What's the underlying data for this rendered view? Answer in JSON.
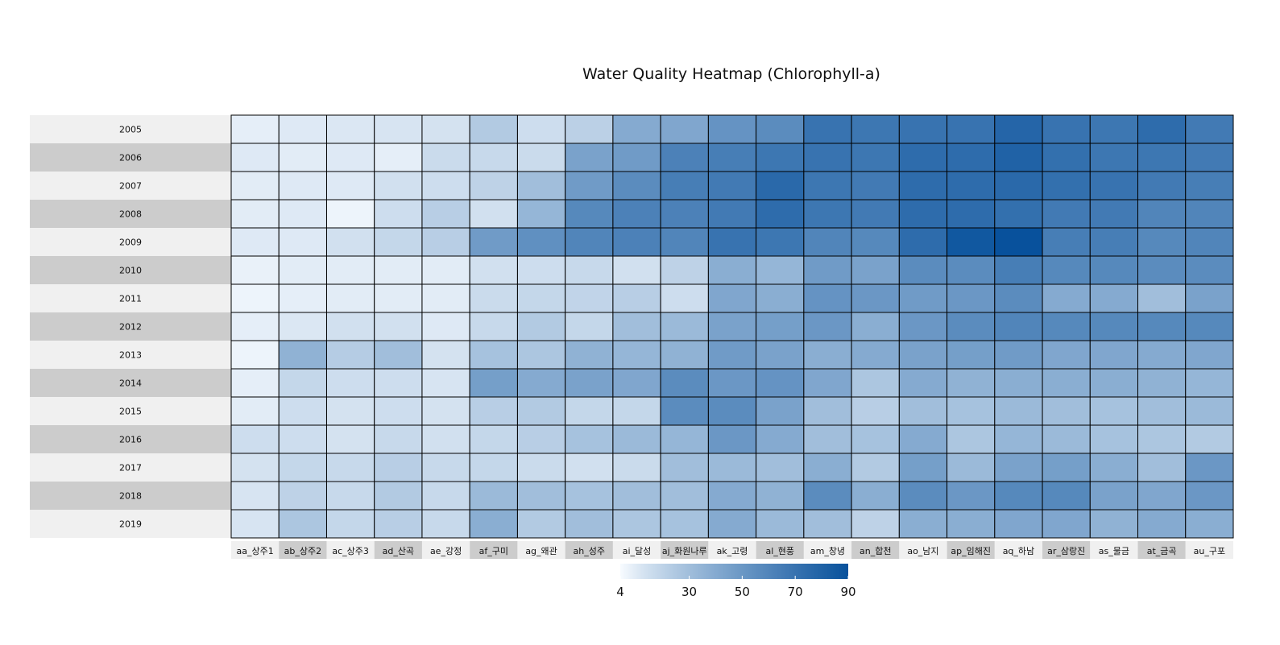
{
  "chart_data": {
    "type": "heatmap",
    "title": "Water Quality Heatmap (Chlorophyll-a)",
    "xlabel": "",
    "ylabel": "",
    "x_categories": [
      "aa_상주1",
      "ab_상주2",
      "ac_상주3",
      "ad_산곡",
      "ae_강정",
      "af_구미",
      "ag_왜관",
      "ah_성주",
      "ai_달성",
      "aj_화원나루",
      "ak_고령",
      "al_현풍",
      "am_창녕",
      "an_합천",
      "ao_남지",
      "ap_임해진",
      "aq_하남",
      "ar_삼랑진",
      "as_물금",
      "at_금곡",
      "au_구포"
    ],
    "y_categories": [
      "2005",
      "2006",
      "2007",
      "2008",
      "2009",
      "2010",
      "2011",
      "2012",
      "2013",
      "2014",
      "2015",
      "2016",
      "2017",
      "2018",
      "2019"
    ],
    "values": [
      [
        8,
        10,
        11,
        12,
        13,
        24,
        15,
        21,
        40,
        42,
        52,
        56,
        70,
        68,
        70,
        70,
        78,
        70,
        68,
        74,
        66
      ],
      [
        10,
        9,
        10,
        8,
        16,
        17,
        16,
        44,
        48,
        62,
        64,
        68,
        70,
        68,
        74,
        74,
        80,
        72,
        68,
        68,
        66
      ],
      [
        9,
        10,
        10,
        14,
        15,
        20,
        30,
        48,
        56,
        64,
        66,
        76,
        68,
        66,
        74,
        74,
        76,
        72,
        70,
        66,
        64
      ],
      [
        9,
        10,
        6,
        15,
        22,
        14,
        34,
        58,
        62,
        62,
        66,
        74,
        68,
        66,
        74,
        74,
        72,
        66,
        66,
        60,
        60
      ],
      [
        10,
        10,
        14,
        18,
        22,
        48,
        54,
        60,
        62,
        60,
        70,
        68,
        60,
        58,
        74,
        86,
        96,
        64,
        64,
        58,
        60
      ],
      [
        7,
        9,
        9,
        9,
        9,
        14,
        15,
        17,
        14,
        20,
        38,
        34,
        48,
        44,
        56,
        56,
        64,
        58,
        58,
        56,
        56
      ],
      [
        6,
        8,
        9,
        9,
        9,
        16,
        18,
        19,
        22,
        15,
        42,
        38,
        52,
        50,
        48,
        50,
        56,
        40,
        40,
        30,
        44
      ],
      [
        8,
        11,
        14,
        14,
        10,
        17,
        24,
        18,
        30,
        32,
        44,
        46,
        50,
        38,
        50,
        56,
        60,
        58,
        58,
        58,
        58
      ],
      [
        6,
        36,
        23,
        30,
        13,
        28,
        26,
        36,
        34,
        36,
        48,
        44,
        38,
        40,
        44,
        46,
        48,
        42,
        42,
        40,
        42
      ],
      [
        8,
        18,
        15,
        15,
        12,
        46,
        40,
        44,
        42,
        56,
        50,
        52,
        42,
        26,
        40,
        36,
        38,
        38,
        38,
        36,
        34
      ],
      [
        9,
        15,
        13,
        15,
        13,
        22,
        24,
        18,
        18,
        56,
        56,
        44,
        30,
        22,
        30,
        28,
        32,
        30,
        28,
        30,
        32
      ],
      [
        15,
        15,
        13,
        17,
        14,
        18,
        22,
        28,
        32,
        34,
        50,
        40,
        30,
        28,
        40,
        26,
        34,
        32,
        28,
        26,
        24
      ],
      [
        13,
        18,
        17,
        22,
        17,
        18,
        16,
        14,
        16,
        30,
        32,
        30,
        38,
        24,
        46,
        32,
        44,
        46,
        38,
        30,
        50
      ],
      [
        12,
        20,
        17,
        24,
        17,
        32,
        30,
        28,
        30,
        30,
        40,
        36,
        56,
        38,
        56,
        50,
        58,
        58,
        44,
        42,
        50
      ],
      [
        12,
        26,
        18,
        22,
        17,
        38,
        24,
        30,
        26,
        28,
        40,
        32,
        30,
        20,
        38,
        38,
        42,
        42,
        36,
        40,
        38
      ]
    ],
    "colorbar": {
      "ticks": [
        4,
        30,
        50,
        70,
        90
      ],
      "min": 4,
      "max": 90,
      "colors": [
        "#f7fbff",
        "#08519c"
      ],
      "position": "bottom"
    },
    "row_band_colors": [
      "#f0f0f0",
      "#cccccc"
    ],
    "grid": true
  }
}
